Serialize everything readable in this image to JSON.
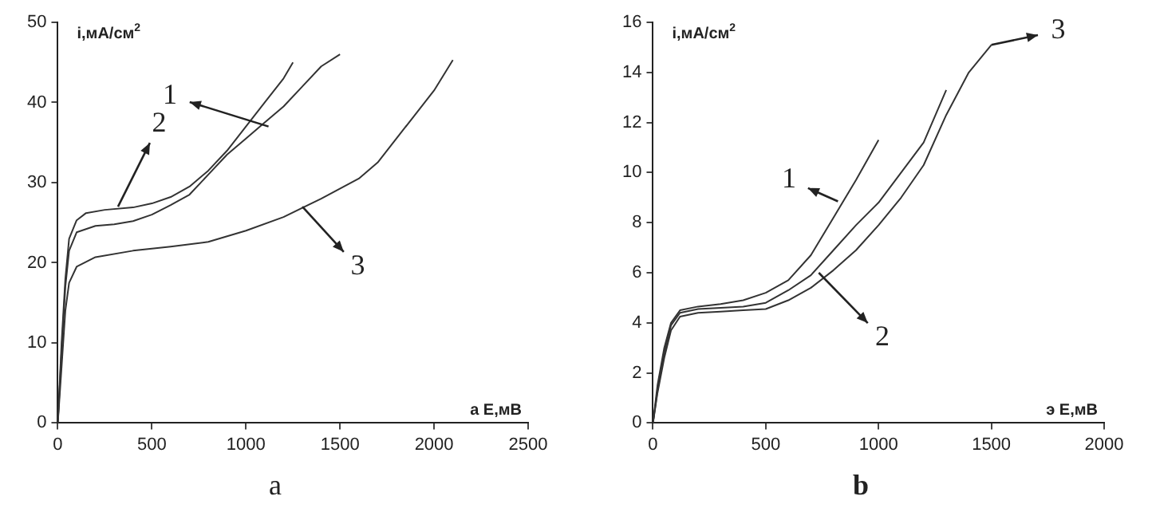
{
  "chart_data": [
    {
      "type": "line",
      "title": "а",
      "xlabel": "а E,мВ",
      "ylabel": "i,мА/см$^{2}$",
      "xlim": [
        0,
        2500
      ],
      "xticks": [
        0,
        500,
        1000,
        1500,
        2000,
        2500
      ],
      "ylim": [
        0,
        50
      ],
      "yticks": [
        0,
        10,
        20,
        30,
        40,
        50
      ],
      "grid": false,
      "legend": false,
      "marker": "none",
      "series": [
        {
          "color": "#333333",
          "x": [
            0,
            20,
            40,
            60,
            100,
            200,
            300,
            400,
            500,
            600,
            700,
            800,
            900,
            1000,
            1100,
            1200,
            1300,
            1400,
            1500
          ],
          "values": [
            0,
            9,
            17,
            21.5,
            23.8,
            24.6,
            24.8,
            25.2,
            26,
            27.2,
            28.5,
            31,
            33.5,
            35.5,
            37.5,
            39.5,
            42,
            44.5,
            46
          ]
        },
        {
          "color": "#333333",
          "x": [
            0,
            20,
            40,
            60,
            100,
            150,
            250,
            400,
            500,
            600,
            700,
            800,
            900,
            1000,
            1100,
            1200,
            1250
          ],
          "values": [
            0,
            10,
            18,
            23,
            25.3,
            26.2,
            26.6,
            26.9,
            27.4,
            28.2,
            29.5,
            31.5,
            34,
            37,
            40,
            43,
            45
          ]
        },
        {
          "color": "#333333",
          "x": [
            0,
            20,
            40,
            60,
            100,
            200,
            400,
            600,
            800,
            1000,
            1200,
            1400,
            1600,
            1700,
            1800,
            1900,
            2000,
            2100
          ],
          "values": [
            0,
            7,
            14,
            17.5,
            19.5,
            20.7,
            21.5,
            22,
            22.6,
            24,
            25.7,
            28,
            30.5,
            32.5,
            35.5,
            38.5,
            41.5,
            45.3
          ]
        }
      ],
      "annotations": [
        {
          "text": "1",
          "x": 1120,
          "y": 37
        },
        {
          "text": "2",
          "x": 320,
          "y": 27
        },
        {
          "text": "3",
          "x": 1300,
          "y": 27
        }
      ]
    },
    {
      "type": "line",
      "title": "b",
      "xlabel": "э E,мВ",
      "ylabel": "i,мА/см$^{2}$",
      "xlim": [
        0,
        2000
      ],
      "xticks": [
        0,
        500,
        1000,
        1500,
        2000
      ],
      "ylim": [
        0,
        16
      ],
      "yticks": [
        0,
        2,
        4,
        6,
        8,
        10,
        12,
        14,
        16
      ],
      "grid": false,
      "legend": false,
      "marker": "none",
      "series": [
        {
          "color": "#333333",
          "x": [
            0,
            20,
            50,
            80,
            120,
            200,
            300,
            400,
            500,
            600,
            700,
            800,
            900,
            1000
          ],
          "values": [
            0,
            1.5,
            3,
            4,
            4.5,
            4.65,
            4.75,
            4.9,
            5.2,
            5.7,
            6.7,
            8.2,
            9.7,
            11.3
          ]
        },
        {
          "color": "#333333",
          "x": [
            0,
            20,
            50,
            80,
            120,
            200,
            300,
            400,
            500,
            600,
            700,
            800,
            900,
            1000,
            1100,
            1200,
            1300
          ],
          "values": [
            0,
            1.3,
            2.8,
            3.9,
            4.4,
            4.55,
            4.6,
            4.65,
            4.8,
            5.3,
            5.9,
            6.9,
            7.9,
            8.8,
            10,
            11.2,
            13.3
          ]
        },
        {
          "color": "#333333",
          "x": [
            0,
            20,
            50,
            80,
            120,
            200,
            300,
            400,
            500,
            600,
            700,
            800,
            900,
            1000,
            1100,
            1200,
            1300,
            1400,
            1500
          ],
          "values": [
            0,
            1.2,
            2.6,
            3.7,
            4.25,
            4.4,
            4.45,
            4.5,
            4.55,
            4.9,
            5.4,
            6.1,
            6.9,
            7.9,
            9,
            10.3,
            12.3,
            14,
            15.1
          ]
        }
      ],
      "annotations": [
        {
          "text": "1",
          "x": 820,
          "y": 8.85
        },
        {
          "text": "2",
          "x": 735,
          "y": 6
        },
        {
          "text": "3",
          "x": 1500,
          "y": 15.1
        }
      ]
    }
  ]
}
